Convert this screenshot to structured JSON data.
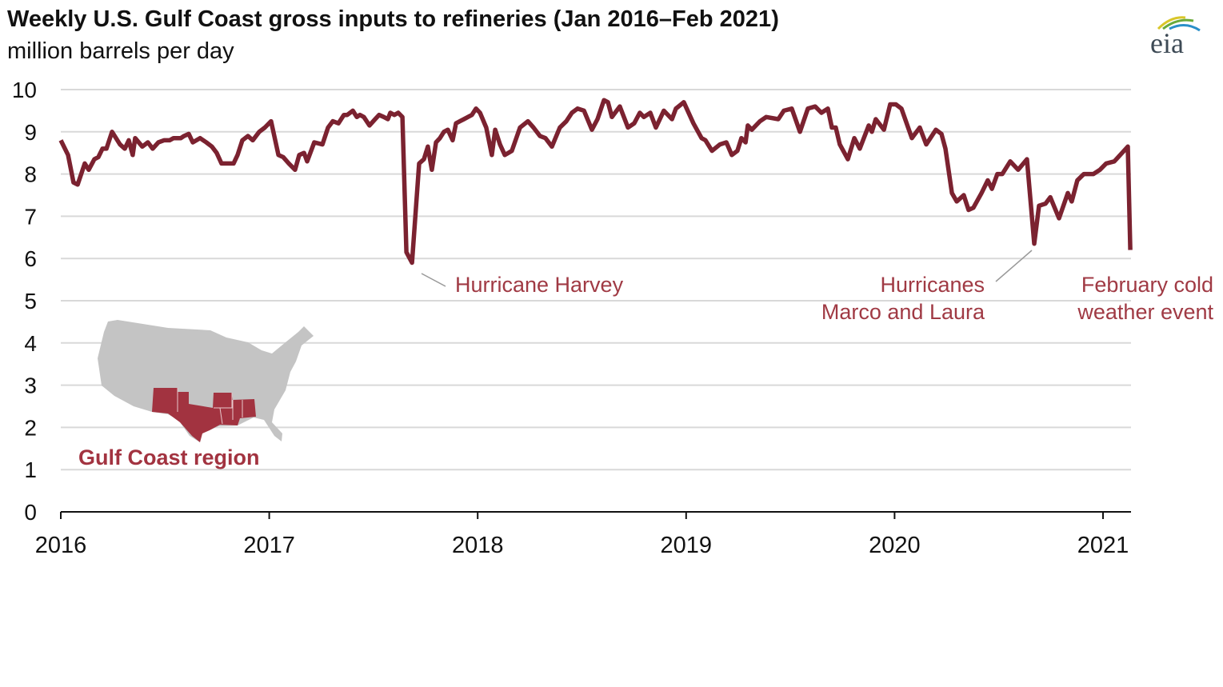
{
  "title": "Weekly U.S. Gulf Coast gross inputs to refineries (Jan 2016–Feb 2021)",
  "subtitle": "million barrels per day",
  "logo_text": "eia",
  "colors": {
    "line": "#7b2230",
    "annotation": "#a03a44",
    "grid": "#d9d9d9",
    "map_gray": "#c4c4c4",
    "map_region": "#a23340"
  },
  "annotations": {
    "harvey": "Hurricane Harvey",
    "marco_laura_line1": "Hurricanes",
    "marco_laura_line2": "Marco and Laura",
    "february_line1": "February cold",
    "february_line2": "weather event"
  },
  "map": {
    "label": "Gulf Coast region"
  },
  "chart_data": {
    "type": "line",
    "title": "Weekly U.S. Gulf Coast gross inputs to refineries (Jan 2016–Feb 2021)",
    "ylabel": "million barrels per day",
    "xlabel": "",
    "xlim": [
      2016,
      2021.14
    ],
    "ylim": [
      0,
      10
    ],
    "grid": true,
    "x_ticks": [
      "2016",
      "2017",
      "2018",
      "2019",
      "2020",
      "2021"
    ],
    "y_ticks": [
      "0",
      "1",
      "2",
      "3",
      "4",
      "5",
      "6",
      "7",
      "8",
      "9",
      "10"
    ],
    "series": [
      {
        "x": [
          2016.0,
          2016.035,
          2016.061,
          2016.081,
          2016.115,
          2016.134,
          2016.161,
          2016.18,
          2016.2,
          2016.219,
          2016.246,
          2016.284,
          2016.307,
          2016.326,
          2016.345,
          2016.357,
          2016.391,
          2016.418,
          2016.441,
          2016.468,
          2016.495,
          2016.522,
          2016.541,
          2016.576,
          2016.591,
          2016.614,
          2016.633,
          2016.668,
          2016.698,
          2016.725,
          2016.748,
          2016.771,
          2016.806,
          2016.829,
          2016.848,
          2016.871,
          2016.898,
          2016.921,
          2016.952,
          2016.979,
          2017.009,
          2017.044,
          2017.067,
          2017.094,
          2017.124,
          2017.144,
          2017.167,
          2017.182,
          2017.216,
          2017.255,
          2017.282,
          2017.305,
          2017.332,
          2017.358,
          2017.374,
          2017.401,
          2017.42,
          2017.435,
          2017.454,
          2017.481,
          2017.508,
          2017.527,
          2017.55,
          2017.569,
          2017.581,
          2017.6,
          2017.619,
          2017.639,
          2017.658,
          2017.685,
          2017.719,
          2017.742,
          2017.761,
          2017.78,
          2017.8,
          2017.819,
          2017.838,
          2017.857,
          2017.88,
          2017.896,
          2017.915,
          2017.934,
          2017.953,
          2017.972,
          2017.992,
          2018.011,
          2018.041,
          2018.068,
          2018.084,
          2018.107,
          2018.13,
          2018.164,
          2018.203,
          2018.241,
          2018.268,
          2018.299,
          2018.325,
          2018.356,
          2018.394,
          2018.425,
          2018.452,
          2018.479,
          2018.51,
          2018.548,
          2018.575,
          2018.606,
          2018.625,
          2018.644,
          2018.682,
          2018.721,
          2018.751,
          2018.778,
          2018.797,
          2018.828,
          2018.855,
          2018.893,
          2018.932,
          2018.951,
          2018.989,
          2019.035,
          2019.074,
          2019.093,
          2019.124,
          2019.162,
          2019.193,
          2019.219,
          2019.246,
          2019.265,
          2019.285,
          2019.296,
          2019.315,
          2019.354,
          2019.384,
          2019.442,
          2019.469,
          2019.507,
          2019.546,
          2019.584,
          2019.619,
          2019.649,
          2019.68,
          2019.699,
          2019.718,
          2019.737,
          2019.776,
          2019.807,
          2019.833,
          2019.876,
          2019.891,
          2019.91,
          2019.949,
          2019.979,
          2020.006,
          2020.033,
          2020.083,
          2020.121,
          2020.152,
          2020.198,
          2020.225,
          2020.244,
          2020.275,
          2020.298,
          2020.332,
          2020.355,
          2020.378,
          2020.417,
          2020.447,
          2020.467,
          2020.493,
          2020.517,
          2020.555,
          2020.593,
          2020.635,
          2020.67,
          2020.693,
          2020.724,
          2020.747,
          2020.789,
          2020.831,
          2020.85,
          2020.877,
          2020.908,
          2020.954,
          2020.985,
          2021.015,
          2021.054,
          2021.119,
          2021.131
        ],
        "y": [
          8.8,
          8.45,
          7.8,
          7.75,
          8.25,
          8.1,
          8.35,
          8.4,
          8.6,
          8.6,
          9.0,
          8.7,
          8.6,
          8.8,
          8.45,
          8.85,
          8.65,
          8.75,
          8.6,
          8.75,
          8.8,
          8.8,
          8.85,
          8.85,
          8.9,
          8.95,
          8.75,
          8.85,
          8.75,
          8.65,
          8.5,
          8.25,
          8.25,
          8.25,
          8.45,
          8.8,
          8.9,
          8.8,
          9.0,
          9.1,
          9.25,
          8.45,
          8.4,
          8.25,
          8.1,
          8.45,
          8.5,
          8.3,
          8.75,
          8.7,
          9.1,
          9.25,
          9.2,
          9.4,
          9.4,
          9.5,
          9.35,
          9.4,
          9.35,
          9.15,
          9.3,
          9.4,
          9.35,
          9.3,
          9.45,
          9.4,
          9.45,
          9.35,
          6.15,
          5.9,
          8.25,
          8.35,
          8.65,
          8.1,
          8.75,
          8.85,
          9.0,
          9.05,
          8.8,
          9.2,
          9.25,
          9.3,
          9.35,
          9.4,
          9.55,
          9.45,
          9.1,
          8.45,
          9.05,
          8.7,
          8.45,
          8.55,
          9.1,
          9.25,
          9.1,
          8.9,
          8.85,
          8.65,
          9.1,
          9.25,
          9.45,
          9.55,
          9.5,
          9.05,
          9.3,
          9.75,
          9.7,
          9.35,
          9.6,
          9.1,
          9.2,
          9.45,
          9.35,
          9.45,
          9.1,
          9.5,
          9.3,
          9.55,
          9.7,
          9.2,
          8.85,
          8.8,
          8.55,
          8.7,
          8.75,
          8.45,
          8.55,
          8.85,
          8.75,
          9.15,
          9.05,
          9.25,
          9.35,
          9.3,
          9.5,
          9.55,
          9.0,
          9.55,
          9.6,
          9.45,
          9.55,
          9.1,
          9.1,
          8.7,
          8.35,
          8.85,
          8.6,
          9.15,
          9.0,
          9.3,
          9.05,
          9.65,
          9.65,
          9.55,
          8.85,
          9.1,
          8.7,
          9.05,
          8.95,
          8.6,
          7.55,
          7.35,
          7.5,
          7.15,
          7.2,
          7.55,
          7.85,
          7.65,
          8.0,
          8.0,
          8.3,
          8.1,
          8.35,
          6.35,
          7.25,
          7.3,
          7.45,
          6.95,
          7.55,
          7.35,
          7.85,
          8.0,
          8.0,
          8.1,
          8.25,
          8.3,
          8.65,
          6.2
        ]
      }
    ]
  }
}
